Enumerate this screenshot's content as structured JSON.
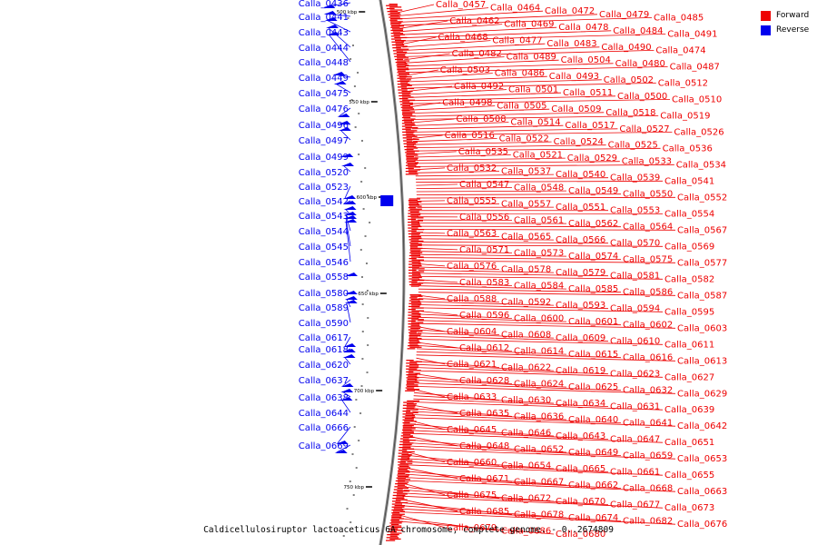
{
  "caption": "Caldicellulosiruptor lactoaceticus 6A chromosome, complete genome. - 0..2674809",
  "legend": [
    {
      "label": "Forward",
      "color": "#ee0000"
    },
    {
      "label": "Reverse",
      "color": "#0000ee"
    }
  ],
  "colors": {
    "forward": "#ee0000",
    "reverse": "#0000ee",
    "backbone": "#888888"
  },
  "scale_ticks": [
    "500 kbp",
    "550 kbp",
    "600 kbp",
    "650 kbp",
    "700 kbp",
    "750 kbp"
  ],
  "reverse_genes": [
    "Calla_0436",
    "Calla_0441",
    "Calla_0443",
    "Calla_0444",
    "Calla_0448",
    "Calla_0449",
    "Calla_0475",
    "Calla_0476",
    "Calla_0496",
    "Calla_0497",
    "Calla_0499",
    "Calla_0520",
    "Calla_0523",
    "Calla_0542",
    "Calla_0543",
    "Calla_0544",
    "Calla_0545",
    "Calla_0546",
    "Calla_0558",
    "Calla_0580",
    "Calla_0589",
    "Calla_0590",
    "Calla_0617",
    "Calla_0618",
    "Calla_0620",
    "Calla_0637",
    "Calla_0638",
    "Calla_0644",
    "Calla_0666",
    "Calla_0669"
  ],
  "forward_genes": [
    "Calla_0457",
    "Calla_0464",
    "Calla_0472",
    "Calla_0479",
    "Calla_0485",
    "Calla_0462",
    "Calla_0469",
    "Calla_0478",
    "Calla_0484",
    "Calla_0491",
    "Calla_0468",
    "Calla_0477",
    "Calla_0483",
    "Calla_0490",
    "Calla_0474",
    "Calla_0482",
    "Calla_0489",
    "Calla_0504",
    "Calla_0480",
    "Calla_0487",
    "Calla_0503",
    "Calla_0486",
    "Calla_0493",
    "Calla_0502",
    "Calla_0512",
    "Calla_0492",
    "Calla_0501",
    "Calla_0511",
    "Calla_0500",
    "Calla_0510",
    "Calla_0498",
    "Calla_0505",
    "Calla_0509",
    "Calla_0518",
    "Calla_0519",
    "Calla_0508",
    "Calla_0514",
    "Calla_0517",
    "Calla_0527",
    "Calla_0526",
    "Calla_0516",
    "Calla_0522",
    "Calla_0524",
    "Calla_0525",
    "Calla_0536",
    "Calla_0535",
    "Calla_0521",
    "Calla_0529",
    "Calla_0533",
    "Calla_0534",
    "Calla_0532",
    "Calla_0537",
    "Calla_0540",
    "Calla_0539",
    "Calla_0541",
    "Calla_0547",
    "Calla_0548",
    "Calla_0549",
    "Calla_0550",
    "Calla_0552",
    "Calla_0555",
    "Calla_0557",
    "Calla_0551",
    "Calla_0553",
    "Calla_0554",
    "Calla_0556",
    "Calla_0561",
    "Calla_0562",
    "Calla_0564",
    "Calla_0567",
    "Calla_0563",
    "Calla_0565",
    "Calla_0566",
    "Calla_0570",
    "Calla_0569",
    "Calla_0571",
    "Calla_0573",
    "Calla_0574",
    "Calla_0575",
    "Calla_0577",
    "Calla_0576",
    "Calla_0578",
    "Calla_0579",
    "Calla_0581",
    "Calla_0582",
    "Calla_0583",
    "Calla_0584",
    "Calla_0585",
    "Calla_0586",
    "Calla_0587",
    "Calla_0588",
    "Calla_0592",
    "Calla_0593",
    "Calla_0594",
    "Calla_0595",
    "Calla_0596",
    "Calla_0600",
    "Calla_0601",
    "Calla_0602",
    "Calla_0603",
    "Calla_0604",
    "Calla_0608",
    "Calla_0609",
    "Calla_0610",
    "Calla_0611",
    "Calla_0612",
    "Calla_0614",
    "Calla_0615",
    "Calla_0616",
    "Calla_0613",
    "Calla_0621",
    "Calla_0622",
    "Calla_0619",
    "Calla_0623",
    "Calla_0627",
    "Calla_0628",
    "Calla_0624",
    "Calla_0625",
    "Calla_0632",
    "Calla_0629",
    "Calla_0633",
    "Calla_0630",
    "Calla_0634",
    "Calla_0631",
    "Calla_0639",
    "Calla_0635",
    "Calla_0636",
    "Calla_0640",
    "Calla_0641",
    "Calla_0642",
    "Calla_0645",
    "Calla_0646",
    "Calla_0643",
    "Calla_0647",
    "Calla_0651",
    "Calla_0648",
    "Calla_0652",
    "Calla_0649",
    "Calla_0659",
    "Calla_0653",
    "Calla_0660",
    "Calla_0654",
    "Calla_0665",
    "Calla_0661",
    "Calla_0655",
    "Calla_0671",
    "Calla_0667",
    "Calla_0662",
    "Calla_0668",
    "Calla_0663",
    "Calla_0675",
    "Calla_0672",
    "Calla_0670",
    "Calla_0677",
    "Calla_0673",
    "Calla_0685",
    "Calla_0678",
    "Calla_0674",
    "Calla_0682",
    "Calla_0676",
    "Calla_0679",
    "Calla_0686",
    "Calla_0680"
  ]
}
